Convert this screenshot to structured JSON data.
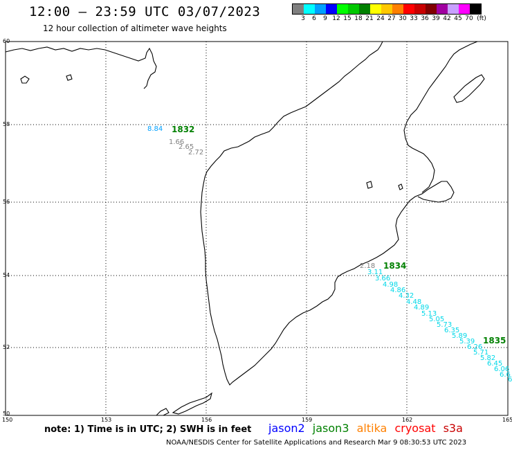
{
  "header": {
    "title": "12:00 – 23:59 UTC 03/07/2023",
    "subtitle": "12 hour collection of altimeter wave heights"
  },
  "color_scale": {
    "labels": [
      "3",
      "6",
      "9",
      "12",
      "15",
      "18",
      "21",
      "24",
      "27",
      "30",
      "33",
      "36",
      "39",
      "42",
      "45",
      "70"
    ],
    "unit": "(ft)",
    "colors": [
      "#7f7f7f",
      "#00ffff",
      "#00a0ff",
      "#0000ff",
      "#00ff00",
      "#00c800",
      "#008000",
      "#ffff00",
      "#ffc800",
      "#ff8000",
      "#ff0000",
      "#c80000",
      "#800000",
      "#a000a0",
      "#c8a0ff",
      "#ff00ff",
      "#000000"
    ]
  },
  "axes": {
    "lon_labels": [
      "150",
      "153",
      "156",
      "159",
      "162",
      "165"
    ],
    "lat_labels": [
      "60",
      "58",
      "56",
      "54",
      "52",
      "50"
    ]
  },
  "pass_labels": [
    {
      "text": "1832",
      "color": "#008000"
    },
    {
      "text": "1834",
      "color": "#008000"
    },
    {
      "text": "1835",
      "color": "#008000"
    }
  ],
  "wave_heights": [
    {
      "text": "8.84",
      "color": "#00a0ff"
    },
    {
      "text": "1.66",
      "color": "#7f7f7f"
    },
    {
      "text": "2.65",
      "color": "#7f7f7f"
    },
    {
      "text": "2.72",
      "color": "#7f7f7f"
    },
    {
      "text": "2.18",
      "color": "#7f7f7f"
    },
    {
      "text": "3.11",
      "color": "#00d8e8"
    },
    {
      "text": "3.66",
      "color": "#00d8e8"
    },
    {
      "text": "4.98",
      "color": "#00d8e8"
    },
    {
      "text": "4.86",
      "color": "#00d8e8"
    },
    {
      "text": "4.32",
      "color": "#00d8e8"
    },
    {
      "text": "4.48",
      "color": "#00d8e8"
    },
    {
      "text": "4.89",
      "color": "#00d8e8"
    },
    {
      "text": "5.13",
      "color": "#00d8e8"
    },
    {
      "text": "5.05",
      "color": "#00d8e8"
    },
    {
      "text": "5.73",
      "color": "#00d8e8"
    },
    {
      "text": "6.35",
      "color": "#00d8e8"
    },
    {
      "text": "5.89",
      "color": "#00d8e8"
    },
    {
      "text": "5.39",
      "color": "#00d8e8"
    },
    {
      "text": "6.26",
      "color": "#00d8e8"
    },
    {
      "text": "5.71",
      "color": "#00d8e8"
    },
    {
      "text": "5.82",
      "color": "#00d8e8"
    },
    {
      "text": "6.45",
      "color": "#00d8e8"
    },
    {
      "text": "6.06",
      "color": "#00d8e8"
    },
    {
      "text": "6.6",
      "color": "#00d8e8"
    },
    {
      "text": "6",
      "color": "#00d8e8"
    }
  ],
  "footer": {
    "note": "note:  1) Time is in UTC;  2) SWH is in feet",
    "legend": [
      {
        "text": "jason2",
        "color": "#0000ff"
      },
      {
        "text": "jason3",
        "color": "#008000"
      },
      {
        "text": "altika",
        "color": "#ff8000"
      },
      {
        "text": "cryosat",
        "color": "#ff0000"
      },
      {
        "text": "s3a",
        "color": "#c80000"
      }
    ],
    "credit": "NOAA/NESDIS Center for Satellite Applications and Research    Mar  9 08:30:53 UTC 2023"
  }
}
